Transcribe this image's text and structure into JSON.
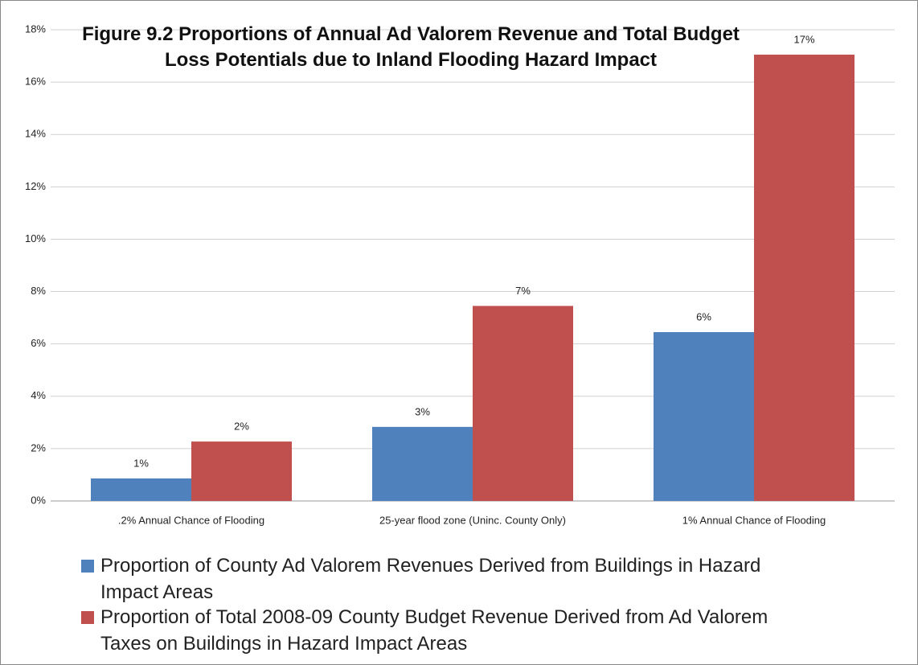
{
  "chart_data": {
    "type": "bar",
    "title": "Figure 9.2 Proportions of Annual Ad Valorem Revenue and Total Budget Loss Potentials due to Inland Flooding Hazard Impact",
    "categories": [
      ".2% Annual Chance of Flooding",
      "25-year flood zone (Uninc. County Only)",
      "1% Annual Chance of Flooding"
    ],
    "series": [
      {
        "name": "Proportion of County Ad Valorem Revenues Derived from Buildings in Hazard Impact Areas",
        "color": "#4f81bd",
        "values": [
          0.86,
          2.83,
          6.45
        ],
        "value_labels": [
          "1%",
          "3%",
          "6%"
        ]
      },
      {
        "name": "Proportion of Total 2008-09 County Budget Revenue Derived from Ad Valorem Taxes on Buildings in Hazard Impact Areas",
        "color": "#c0504d",
        "values": [
          2.27,
          7.45,
          17.05
        ],
        "value_labels": [
          "2%",
          "7%",
          "17%"
        ]
      }
    ],
    "ylim": [
      0,
      18
    ],
    "yticks": [
      {
        "value": 0,
        "label": "0%"
      },
      {
        "value": 2,
        "label": "2%"
      },
      {
        "value": 4,
        "label": "4%"
      },
      {
        "value": 6,
        "label": "6%"
      },
      {
        "value": 8,
        "label": "8%"
      },
      {
        "value": 10,
        "label": "10%"
      },
      {
        "value": 12,
        "label": "12%"
      },
      {
        "value": 14,
        "label": "14%"
      },
      {
        "value": 16,
        "label": "16%"
      },
      {
        "value": 18,
        "label": "18%"
      }
    ],
    "grid": true,
    "legend": "bottom"
  }
}
